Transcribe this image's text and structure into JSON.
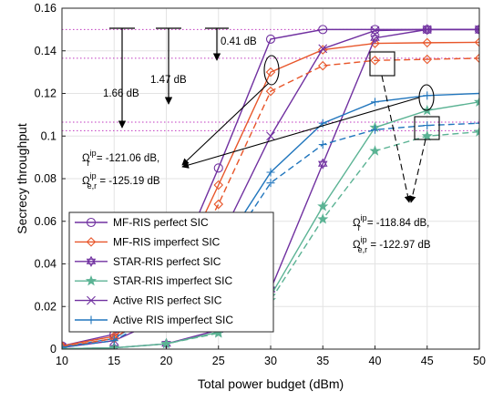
{
  "chart_data": {
    "type": "line",
    "xlabel": "Total power budget (dBm)",
    "ylabel": "Secrecy throughput",
    "xlim": [
      10,
      50
    ],
    "ylim": [
      0,
      0.16
    ],
    "x": [
      10,
      15,
      20,
      25,
      30,
      35,
      40,
      45,
      50
    ],
    "x_ticks": [
      "10",
      "15",
      "20",
      "25",
      "30",
      "35",
      "40",
      "45",
      "50"
    ],
    "y_ticks": [
      "0",
      "0.02",
      "0.04",
      "0.06",
      "0.08",
      "0.1",
      "0.12",
      "0.14",
      "0.16"
    ],
    "grid": true,
    "legend_position": "bottom-left",
    "series": [
      {
        "name": "MF-RIS perfect SIC",
        "color": "#7030A0",
        "line": "solid",
        "marker": "circle",
        "values": [
          0.0015,
          0.007,
          0.028,
          0.085,
          0.1455,
          0.15,
          0.15,
          0.15,
          0.15
        ]
      },
      {
        "name": "MF-RIS imperfect SIC",
        "color": "#E8562A",
        "line": "solid",
        "marker": "diamond",
        "values": [
          0.0015,
          0.006,
          0.025,
          0.077,
          0.13,
          0.1405,
          0.1435,
          0.1438,
          0.144
        ]
      },
      {
        "name": "STAR-RIS perfect SIC",
        "color": "#7030A0",
        "line": "solid",
        "marker": "hexagram",
        "values": [
          0.0002,
          0.0006,
          0.0025,
          0.009,
          0.028,
          0.087,
          0.146,
          0.15,
          0.15
        ]
      },
      {
        "name": "STAR-RIS imperfect SIC",
        "color": "#5BB394",
        "line": "solid",
        "marker": "star",
        "values": [
          0.0002,
          0.0006,
          0.0025,
          0.008,
          0.025,
          0.067,
          0.104,
          0.112,
          0.116
        ]
      },
      {
        "name": "Active RIS perfect SIC",
        "color": "#7030A0",
        "line": "solid",
        "marker": "x",
        "values": [
          0.0008,
          0.004,
          0.015,
          0.05,
          0.1,
          0.141,
          0.1495,
          0.15,
          0.15
        ]
      },
      {
        "name": "Active RIS imperfect SIC",
        "color": "#2176BD",
        "line": "solid",
        "marker": "plus",
        "values": [
          0.001,
          0.005,
          0.02,
          0.045,
          0.083,
          0.106,
          0.116,
          0.119,
          0.12
        ]
      },
      {
        "name": "",
        "color": "#E8562A",
        "line": "dashed",
        "marker": "diamond",
        "values": [
          0.001,
          0.005,
          0.022,
          0.068,
          0.121,
          0.133,
          0.1355,
          0.136,
          0.1365
        ]
      },
      {
        "name": "",
        "color": "#5BB394",
        "line": "dashed",
        "marker": "star",
        "values": [
          0.0002,
          0.0006,
          0.0025,
          0.0075,
          0.023,
          0.061,
          0.093,
          0.1,
          0.102
        ]
      },
      {
        "name": "",
        "color": "#2176BD",
        "line": "dashed",
        "marker": "plus",
        "values": [
          0.0008,
          0.004,
          0.018,
          0.041,
          0.078,
          0.096,
          0.103,
          0.105,
          0.106
        ]
      }
    ],
    "reference_lines": {
      "color": "#C03AC0",
      "y_values": [
        0.15,
        0.1365,
        0.1065,
        0.1025
      ]
    },
    "annotations": {
      "gap_1": "1.66 dB",
      "gap_2": "1.47 dB",
      "gap_3": "0.41 dB",
      "left_omega_r_base": "Ω",
      "left_omega_r_sup": "ip",
      "left_omega_r_sub": "r",
      "left_omega_r_value": " = -121.06 dB,",
      "left_omega_er_base": "Ω",
      "left_omega_er_sup": "ip",
      "left_omega_er_sub": "e,r",
      "left_omega_er_value": " = -125.19 dB",
      "right_omega_r_base": "Ω",
      "right_omega_r_sup": "ip",
      "right_omega_r_sub": "r",
      "right_omega_r_value": " = -118.84 dB,",
      "right_omega_er_base": "Ω",
      "right_omega_er_sup": "ip",
      "right_omega_er_sub": "e,r",
      "right_omega_er_value": " = -122.97 dB"
    }
  }
}
